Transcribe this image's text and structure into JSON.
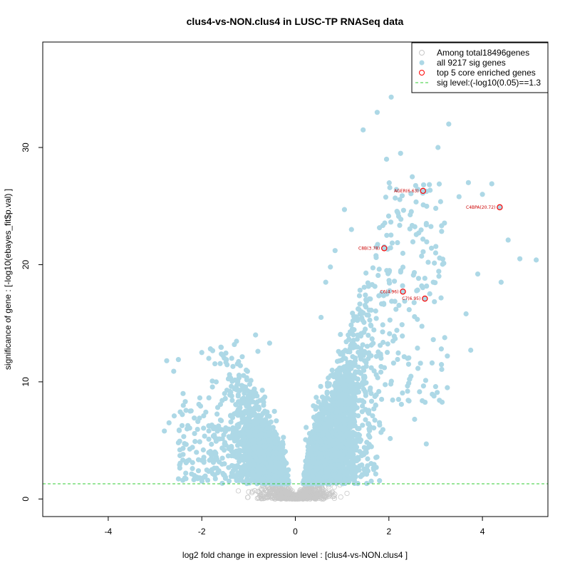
{
  "chart_data": {
    "type": "scatter",
    "title": "clus4-vs-NON.clus4 in LUSC-TP RNASeq data",
    "xlabel": "log2 fold change in expression level : [clus4-vs-NON.clus4 ]",
    "ylabel": "significance of gene : [-log10(ebayes_fit$p.val) ]",
    "xlim": [
      -5.4,
      5.4
    ],
    "ylim": [
      -1.5,
      39
    ],
    "x_ticks": [
      -4,
      -2,
      0,
      2,
      4
    ],
    "y_ticks": [
      0,
      10,
      20,
      30
    ],
    "x_tick_labels": [
      "-4",
      "-2",
      "0",
      "2",
      "4"
    ],
    "y_tick_labels": [
      "0",
      "10",
      "20",
      "30"
    ],
    "sig_threshold": 1.3,
    "legend": {
      "position": "top-right",
      "entries": [
        "Among total18496genes",
        "all 9217 sig genes",
        "top 5 core enriched genes",
        "sig level:(-log10(0.05)==1.3"
      ]
    },
    "colors": {
      "all_genes": "#c8c8c8",
      "sig_genes": "#add8e6",
      "core_genes": "#ff0000",
      "core_labels": "#cc0000",
      "sig_line": "#33cc33"
    },
    "series": [
      {
        "name": "top 5 core enriched genes",
        "points": [
          {
            "label": "AGER(6.63)",
            "x": 2.73,
            "y": 26.3
          },
          {
            "label": "C4BPA(20.72)",
            "x": 4.37,
            "y": 24.9
          },
          {
            "label": "C8B(3.78)",
            "x": 1.9,
            "y": 21.4
          },
          {
            "label": "C6(4.96)",
            "x": 2.3,
            "y": 17.7
          },
          {
            "label": "C7(6.95)",
            "x": 2.77,
            "y": 17.1
          }
        ]
      },
      {
        "name": "all 9217 sig genes (visible outliers)",
        "points": [
          {
            "x": 1.75,
            "y": 33.0
          },
          {
            "x": 2.05,
            "y": 34.3
          },
          {
            "x": 1.45,
            "y": 31.5
          },
          {
            "x": 3.28,
            "y": 32.0
          },
          {
            "x": 3.05,
            "y": 30.0
          },
          {
            "x": 3.7,
            "y": 27.0
          },
          {
            "x": 4.0,
            "y": 26.0
          },
          {
            "x": 3.5,
            "y": 25.8
          },
          {
            "x": 4.2,
            "y": 26.9
          },
          {
            "x": 4.55,
            "y": 22.1
          },
          {
            "x": 4.8,
            "y": 20.5
          },
          {
            "x": 5.15,
            "y": 20.4
          },
          {
            "x": 4.4,
            "y": 18.5
          },
          {
            "x": 3.9,
            "y": 19.2
          },
          {
            "x": 3.65,
            "y": 15.8
          },
          {
            "x": 3.25,
            "y": 12.2
          },
          {
            "x": 3.25,
            "y": 9.5
          },
          {
            "x": 3.75,
            "y": 12.7
          },
          {
            "x": 2.95,
            "y": 13.6
          },
          {
            "x": 2.4,
            "y": 12.0
          },
          {
            "x": 2.1,
            "y": 11.6
          },
          {
            "x": 1.2,
            "y": 23.0
          },
          {
            "x": 1.05,
            "y": 24.7
          },
          {
            "x": 0.85,
            "y": 21.2
          },
          {
            "x": 0.75,
            "y": 19.8
          },
          {
            "x": 0.65,
            "y": 18.5
          },
          {
            "x": 0.55,
            "y": 15.5
          },
          {
            "x": 2.5,
            "y": 27.5
          },
          {
            "x": 2.25,
            "y": 29.5
          },
          {
            "x": 1.95,
            "y": 29.0
          },
          {
            "x": 2.8,
            "y": 23.4
          },
          {
            "x": 3.0,
            "y": 21.0
          },
          {
            "x": 2.95,
            "y": 18.5
          },
          {
            "x": -2.75,
            "y": 11.8
          },
          {
            "x": -2.5,
            "y": 11.9
          },
          {
            "x": -2.6,
            "y": 10.9
          },
          {
            "x": -2.0,
            "y": 12.5
          },
          {
            "x": -1.85,
            "y": 12.0
          },
          {
            "x": -2.4,
            "y": 9.0
          },
          {
            "x": -2.7,
            "y": 6.5
          },
          {
            "x": -2.8,
            "y": 5.8
          },
          {
            "x": -2.5,
            "y": 4.8
          },
          {
            "x": -2.4,
            "y": 3.8
          },
          {
            "x": -0.85,
            "y": 14.0
          },
          {
            "x": -0.55,
            "y": 13.3
          },
          {
            "x": -0.8,
            "y": 12.6
          },
          {
            "x": -1.05,
            "y": 11.0
          },
          {
            "x": -2.25,
            "y": 7.5
          },
          {
            "x": -2.05,
            "y": 6.9
          },
          {
            "x": -1.75,
            "y": 6.0
          },
          {
            "x": -2.2,
            "y": 2.6
          },
          {
            "x": -2.0,
            "y": 3.3
          },
          {
            "x": 2.8,
            "y": 4.7
          },
          {
            "x": 2.55,
            "y": 6.8
          },
          {
            "x": 2.4,
            "y": 9.2
          }
        ]
      }
    ]
  }
}
